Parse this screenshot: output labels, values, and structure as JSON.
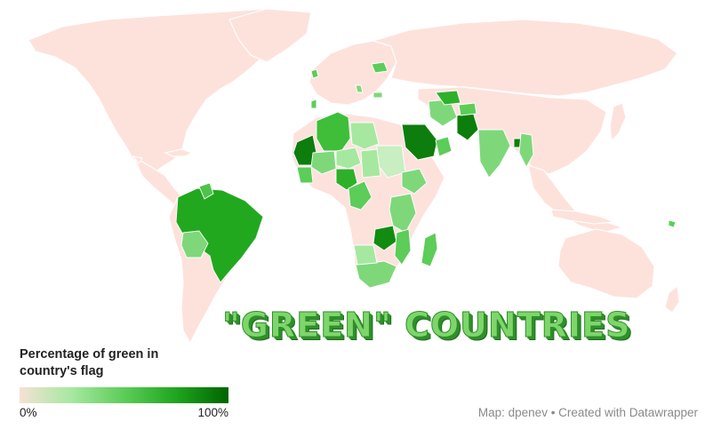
{
  "map": {
    "headline": "\"GREEN\" COUNTRIES",
    "colors": {
      "land": "#fde2dc",
      "scale_min": "#f6e1d6",
      "scale_max": "#006400",
      "ocean": "#ffffff"
    }
  },
  "legend": {
    "title": "Percentage of green in country's flag",
    "min_label": "0%",
    "max_label": "100%"
  },
  "credit": {
    "text": "Map: dpenev • Created with Datawrapper"
  }
}
